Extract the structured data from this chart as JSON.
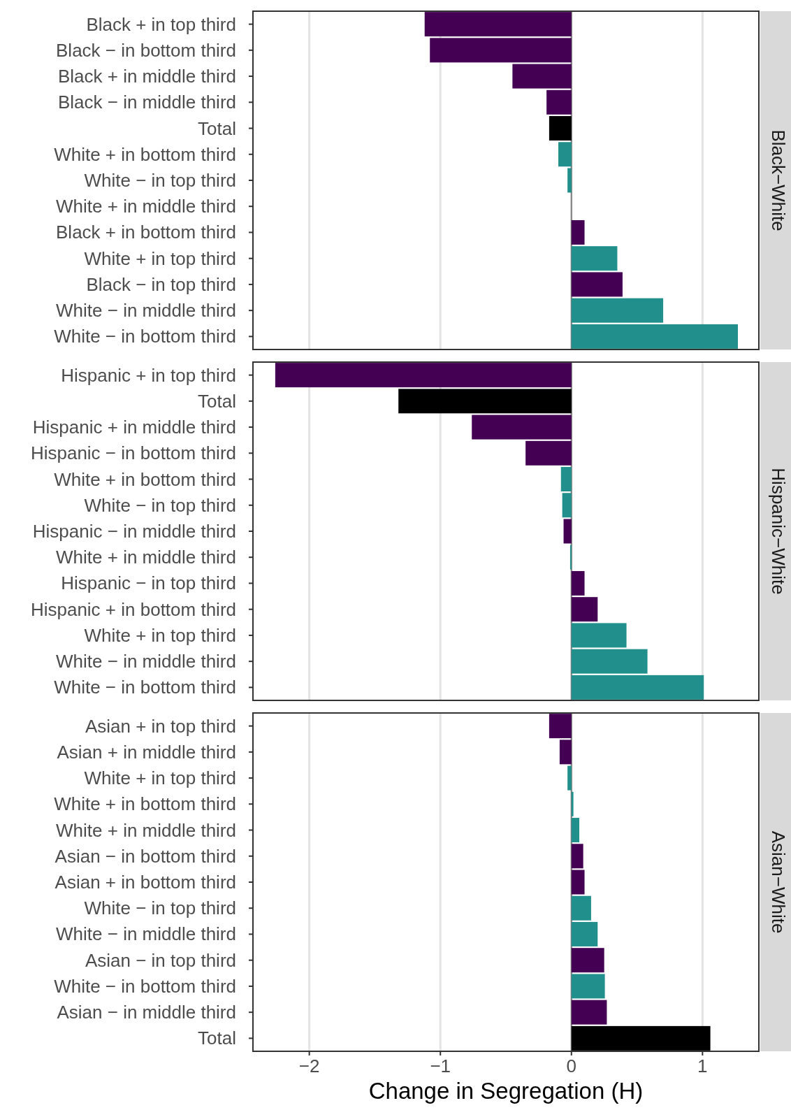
{
  "chart_data": [
    {
      "type": "bar",
      "orientation": "horizontal",
      "title": "Black−White",
      "categories": [
        "Black + in top third",
        "Black − in bottom third",
        "Black + in middle third",
        "Black − in middle third",
        "Total",
        "White + in bottom third",
        "White − in top third",
        "White + in middle third",
        "Black + in bottom third",
        "White + in top third",
        "Black − in top third",
        "White − in middle third",
        "White − in bottom third"
      ],
      "values": [
        -1.12,
        -1.08,
        -0.45,
        -0.19,
        -0.17,
        -0.1,
        -0.03,
        0.0,
        0.1,
        0.35,
        0.39,
        0.7,
        1.27
      ],
      "colors": [
        "#440154",
        "#440154",
        "#440154",
        "#440154",
        "#000000",
        "#21908c",
        "#21908c",
        "#21908c",
        "#440154",
        "#21908c",
        "#440154",
        "#21908c",
        "#21908c"
      ],
      "xlim": [
        -2.43,
        1.43
      ],
      "grid": "x",
      "ref_lines": [
        {
          "axis": "x",
          "value": 0,
          "color": "#7f7f7f"
        }
      ],
      "tick_labels": "y"
    },
    {
      "type": "bar",
      "orientation": "horizontal",
      "title": "Hispanic−White",
      "categories": [
        "Hispanic + in top third",
        "Total",
        "Hispanic + in middle third",
        "Hispanic − in bottom third",
        "White + in bottom third",
        "White − in top third",
        "Hispanic − in middle third",
        "White + in middle third",
        "Hispanic − in top third",
        "Hispanic + in bottom third",
        "White + in top third",
        "White − in middle third",
        "White − in bottom third"
      ],
      "values": [
        -2.26,
        -1.32,
        -0.76,
        -0.35,
        -0.08,
        -0.07,
        -0.06,
        -0.01,
        0.1,
        0.2,
        0.42,
        0.58,
        1.01
      ],
      "colors": [
        "#440154",
        "#000000",
        "#440154",
        "#440154",
        "#21908c",
        "#21908c",
        "#440154",
        "#21908c",
        "#440154",
        "#440154",
        "#21908c",
        "#21908c",
        "#21908c"
      ],
      "xlim": [
        -2.43,
        1.43
      ],
      "grid": "x",
      "ref_lines": [
        {
          "axis": "x",
          "value": 0,
          "color": "#7f7f7f"
        }
      ],
      "tick_labels": "y"
    },
    {
      "type": "bar",
      "orientation": "horizontal",
      "title": "Asian−White",
      "xlabel": "Change in Segregation (H)",
      "categories": [
        "Asian + in top third",
        "Asian + in middle third",
        "White + in top third",
        "White + in bottom third",
        "White + in middle third",
        "Asian − in bottom third",
        "Asian + in bottom third",
        "White − in top third",
        "White − in middle third",
        "Asian − in top third",
        "White − in bottom third",
        "Asian − in middle third",
        "Total"
      ],
      "values": [
        -0.17,
        -0.09,
        -0.03,
        0.015,
        0.06,
        0.09,
        0.1,
        0.15,
        0.2,
        0.25,
        0.255,
        0.27,
        1.06
      ],
      "colors": [
        "#440154",
        "#440154",
        "#21908c",
        "#21908c",
        "#21908c",
        "#440154",
        "#440154",
        "#21908c",
        "#21908c",
        "#440154",
        "#21908c",
        "#440154",
        "#000000"
      ],
      "xlim": [
        -2.43,
        1.43
      ],
      "xticks": [
        {
          "value": -2,
          "label": "−2"
        },
        {
          "value": -1,
          "label": "−1"
        },
        0,
        1
      ],
      "grid": "x",
      "ref_lines": [
        {
          "axis": "x",
          "value": 0,
          "color": "#7f7f7f"
        }
      ]
    }
  ]
}
